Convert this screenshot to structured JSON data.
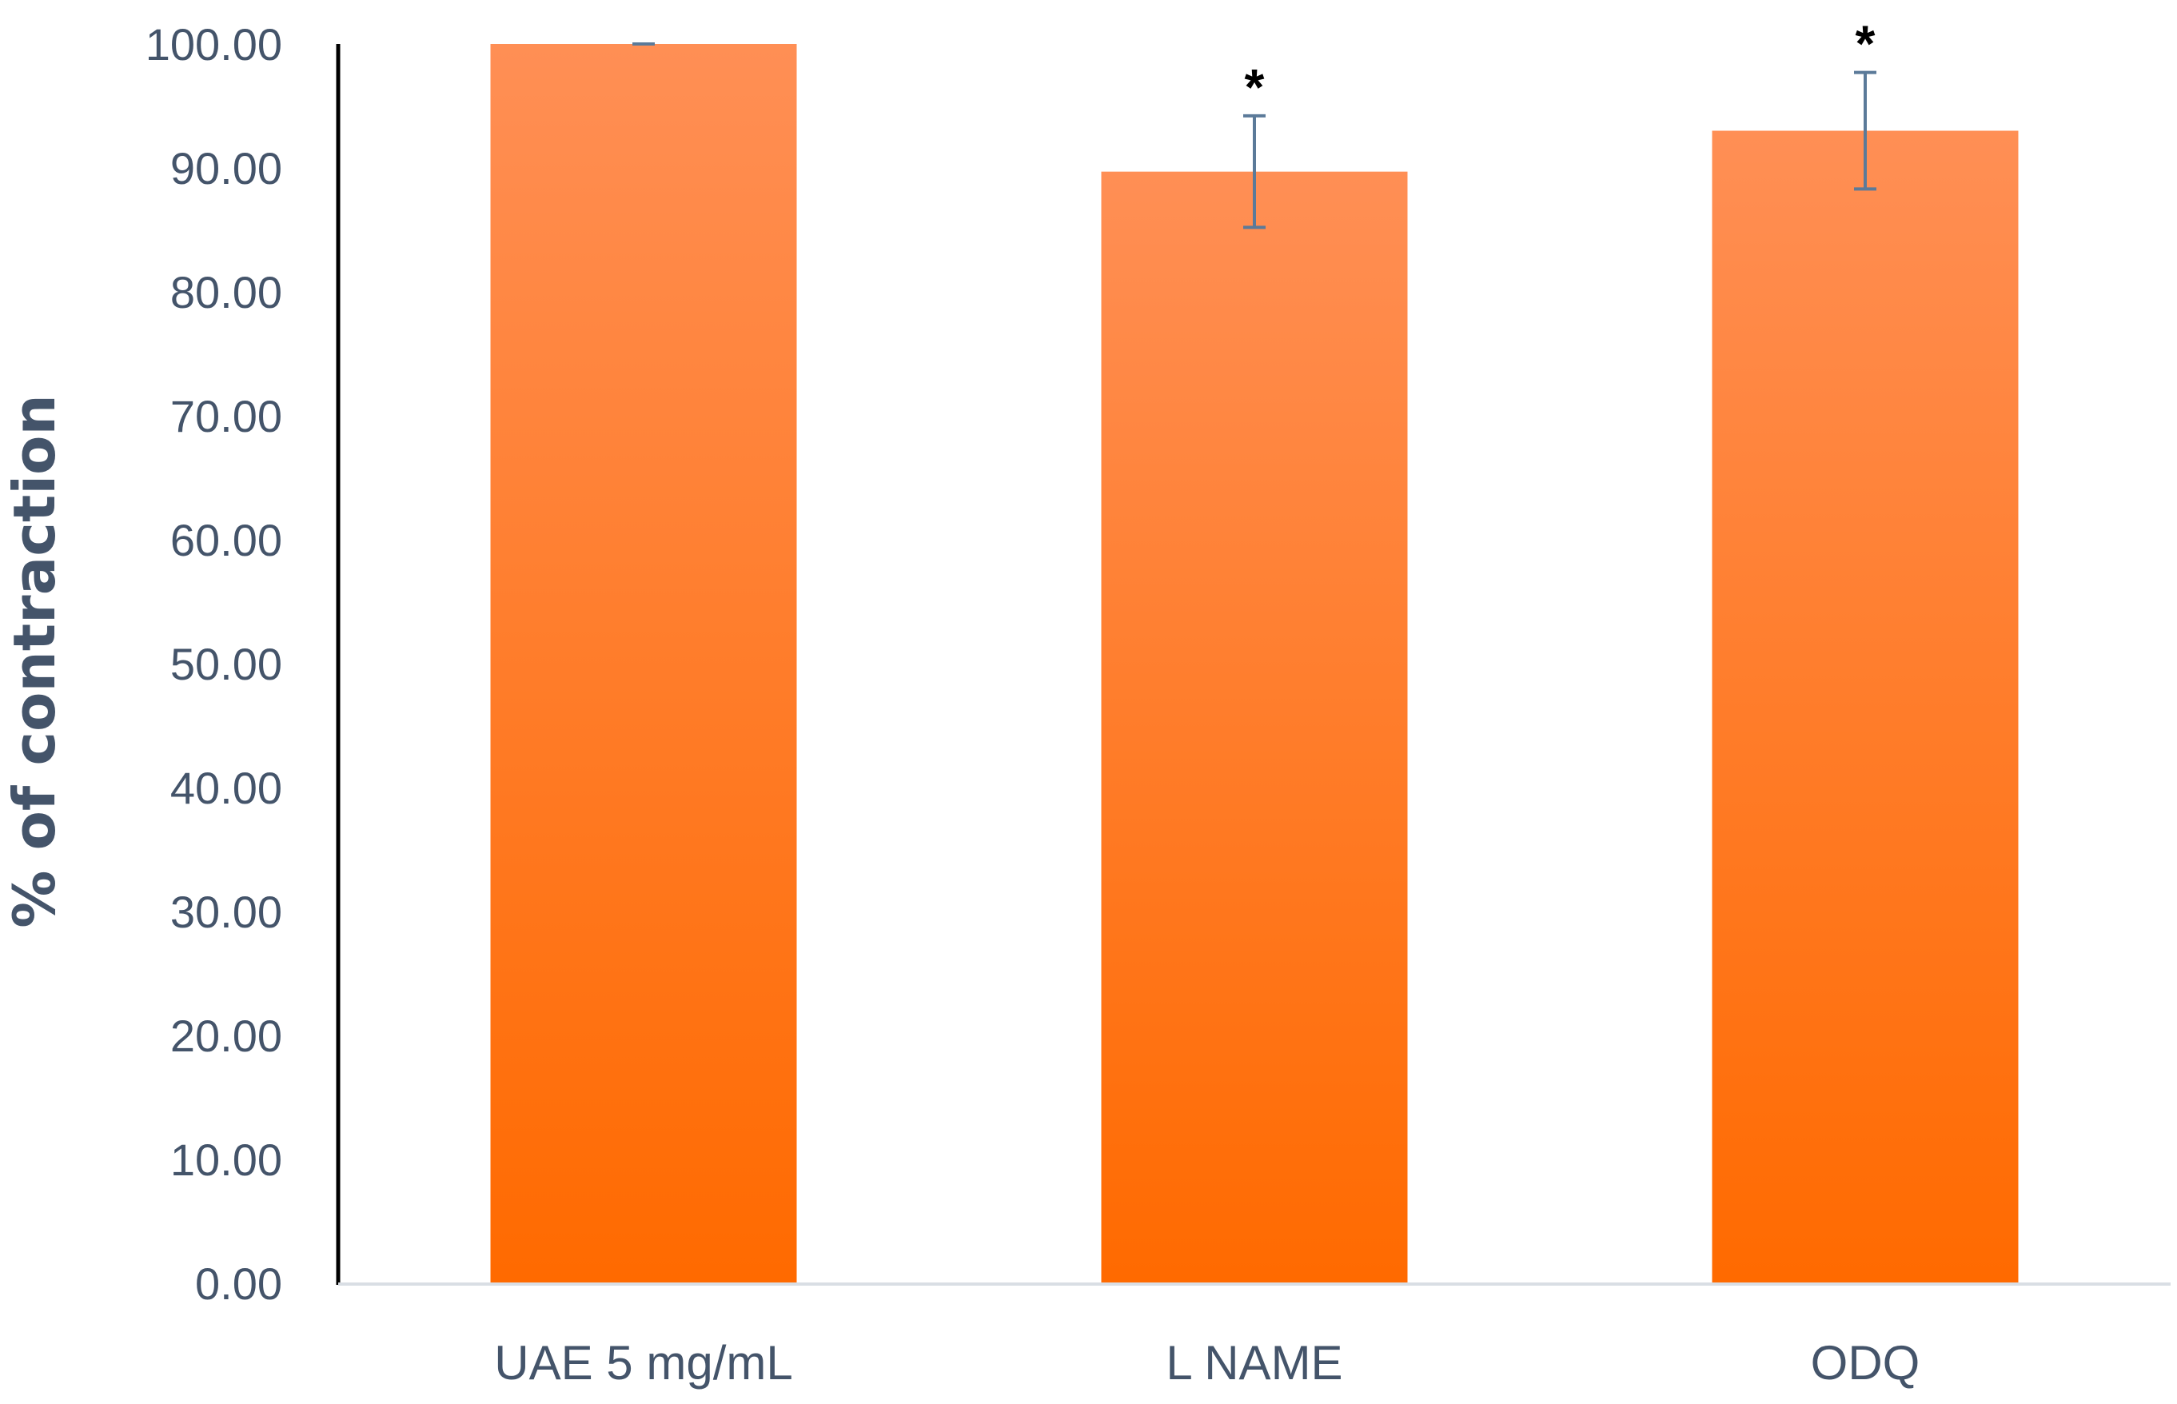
{
  "chart_data": {
    "type": "bar",
    "title": "",
    "xlabel": "",
    "ylabel": "% of contraction",
    "categories": [
      "UAE 5 mg/mL",
      "L NAME",
      "ODQ"
    ],
    "values": [
      100.0,
      89.7,
      93.0
    ],
    "error": [
      0.0,
      4.5,
      4.7
    ],
    "annotations": [
      "",
      "*",
      "*"
    ],
    "ylim": [
      0,
      100
    ],
    "yticks": [
      "0.00",
      "10.00",
      "20.00",
      "30.00",
      "40.00",
      "50.00",
      "60.00",
      "70.00",
      "80.00",
      "90.00",
      "100.00"
    ],
    "grid": false,
    "legend": "none",
    "colors": {
      "bar_top": "#ff8f55",
      "bar_bottom": "#ff6a00",
      "error_bar": "#5b7a99",
      "y_axis_line": "#000000",
      "x_axis_line": "#d9dee4",
      "text": "#44546a",
      "annotation": "#000000"
    }
  }
}
